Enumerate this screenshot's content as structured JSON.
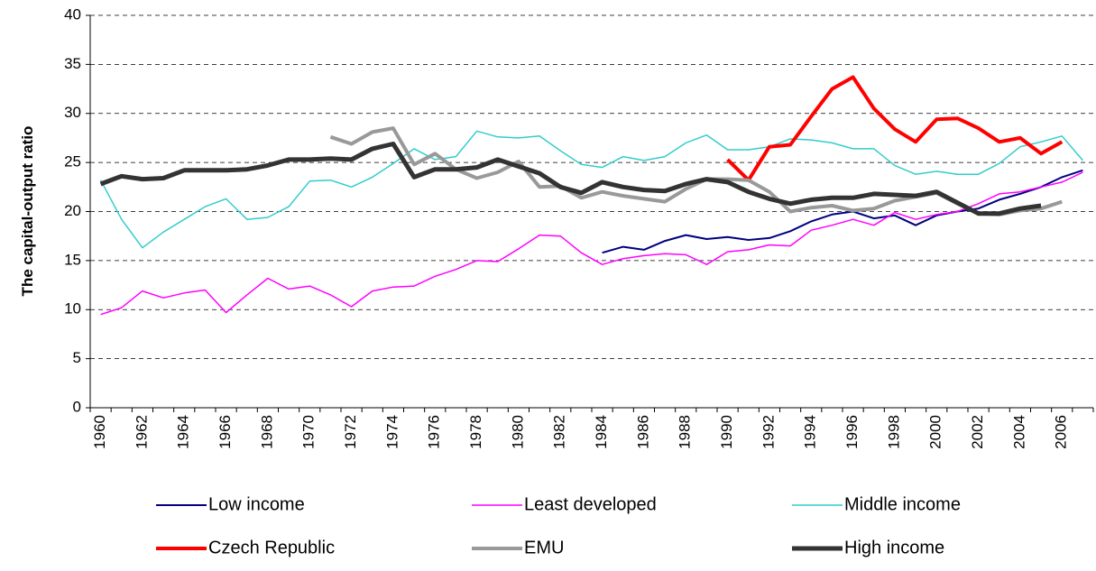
{
  "chart_data": {
    "type": "line",
    "y_label": "The capital-output ratio",
    "categories": [
      "1960",
      null,
      "1962",
      null,
      "1964",
      null,
      "1966",
      null,
      "1968",
      null,
      "1970",
      null,
      "1972",
      null,
      "1974",
      null,
      "1976",
      null,
      "1978",
      null,
      "1980",
      null,
      "1982",
      null,
      "1984",
      null,
      "1986",
      null,
      "1988",
      null,
      "1990",
      null,
      "1992",
      null,
      "1994",
      null,
      "1996",
      null,
      "1998",
      null,
      "2000",
      null,
      "2002",
      null,
      "2004",
      null,
      "2006",
      null
    ],
    "ylim": [
      0,
      40
    ],
    "yticks": [
      0,
      5,
      10,
      15,
      20,
      25,
      30,
      35,
      40
    ],
    "grid": true,
    "series": [
      {
        "name": "Low income",
        "color": "#000080",
        "width": 2,
        "values": [
          null,
          null,
          null,
          null,
          null,
          null,
          null,
          null,
          null,
          null,
          null,
          null,
          null,
          null,
          null,
          null,
          null,
          null,
          null,
          null,
          null,
          null,
          null,
          null,
          15.8,
          16.4,
          16.1,
          17.0,
          17.6,
          17.2,
          17.4,
          17.1,
          17.3,
          18.0,
          19.0,
          19.7,
          20.0,
          19.3,
          19.6,
          18.6,
          19.6,
          20.0,
          20.3,
          21.2,
          21.8,
          22.5,
          23.5,
          24.2
        ]
      },
      {
        "name": "Least developed",
        "color": "#ff00ff",
        "width": 1.5,
        "values": [
          9.5,
          10.2,
          11.9,
          11.2,
          11.7,
          12.0,
          9.7,
          11.5,
          13.2,
          12.1,
          12.4,
          11.5,
          10.3,
          11.9,
          12.3,
          12.4,
          13.4,
          14.1,
          15.0,
          14.9,
          16.2,
          17.6,
          17.5,
          15.8,
          14.6,
          15.2,
          15.5,
          15.7,
          15.6,
          14.6,
          15.9,
          16.1,
          16.6,
          16.5,
          18.1,
          18.6,
          19.2,
          18.6,
          19.9,
          19.2,
          19.7,
          20.0,
          20.8,
          21.8,
          22.0,
          22.5,
          23.0,
          24.0
        ]
      },
      {
        "name": "Middle income",
        "color": "#33cccc",
        "width": 1.5,
        "values": [
          23.2,
          19.2,
          16.3,
          17.9,
          19.2,
          20.5,
          21.3,
          19.2,
          19.4,
          20.5,
          23.1,
          23.2,
          22.5,
          23.5,
          24.9,
          26.4,
          25.3,
          25.6,
          28.2,
          27.6,
          27.5,
          27.7,
          26.2,
          24.8,
          24.5,
          25.6,
          25.2,
          25.6,
          27.0,
          27.8,
          26.3,
          26.3,
          26.6,
          27.4,
          27.3,
          27.0,
          26.4,
          26.4,
          24.7,
          23.8,
          24.1,
          23.8,
          23.8,
          24.9,
          26.6,
          27.1,
          27.7,
          25.2
        ]
      },
      {
        "name": "Czech Republic",
        "color": "#ff0000",
        "width": 4,
        "values": [
          null,
          null,
          null,
          null,
          null,
          null,
          null,
          null,
          null,
          null,
          null,
          null,
          null,
          null,
          null,
          null,
          null,
          null,
          null,
          null,
          null,
          null,
          null,
          null,
          null,
          null,
          null,
          null,
          null,
          null,
          25.3,
          23.2,
          26.6,
          26.8,
          29.7,
          32.5,
          33.7,
          30.5,
          28.4,
          27.1,
          29.4,
          29.5,
          28.5,
          27.1,
          27.5,
          25.9,
          27.1,
          null
        ]
      },
      {
        "name": "EMU",
        "color": "#999999",
        "width": 4,
        "values": [
          null,
          null,
          null,
          null,
          null,
          null,
          null,
          null,
          null,
          null,
          null,
          27.6,
          26.9,
          28.1,
          28.5,
          24.8,
          25.9,
          24.3,
          23.4,
          24.0,
          25.1,
          22.5,
          22.6,
          21.4,
          22.0,
          21.6,
          21.3,
          21.0,
          22.3,
          23.3,
          23.3,
          23.2,
          22.0,
          20.0,
          20.4,
          20.6,
          20.1,
          20.3,
          21.1,
          21.5,
          21.9,
          20.8,
          19.8,
          19.7,
          20.1,
          20.3,
          21.0,
          null
        ]
      },
      {
        "name": "High income",
        "color": "#333333",
        "width": 5,
        "values": [
          22.8,
          23.6,
          23.3,
          23.4,
          24.2,
          24.2,
          24.2,
          24.3,
          24.7,
          25.3,
          25.3,
          25.4,
          25.3,
          26.4,
          26.9,
          23.5,
          24.3,
          24.3,
          24.5,
          25.3,
          24.6,
          23.9,
          22.5,
          21.9,
          23.0,
          22.5,
          22.2,
          22.1,
          22.8,
          23.3,
          23.0,
          22.0,
          21.3,
          20.8,
          21.2,
          21.4,
          21.4,
          21.8,
          21.7,
          21.6,
          22.0,
          20.9,
          19.8,
          19.8,
          20.3,
          20.6,
          null,
          null
        ]
      }
    ]
  }
}
